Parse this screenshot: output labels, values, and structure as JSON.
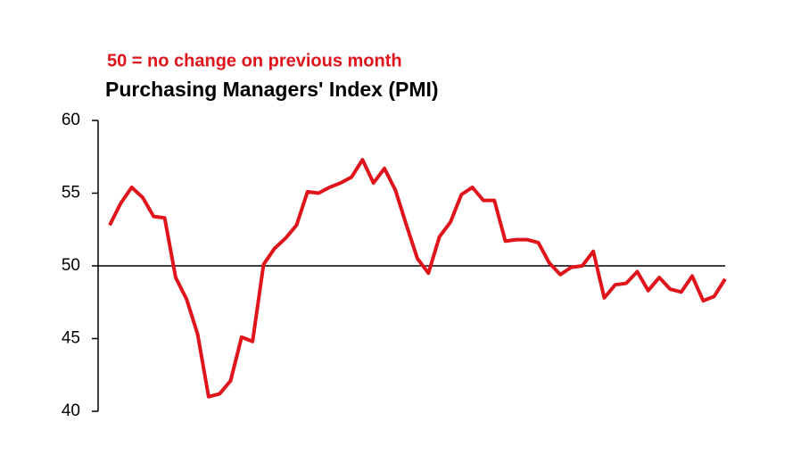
{
  "chart_data": {
    "type": "line",
    "annotation": "50 =  no change on previous month",
    "title": "Purchasing Managers' Index (PMI)",
    "series": [
      {
        "color": "#e0141b",
        "values": [
          52.8,
          54.3,
          55.4,
          54.7,
          53.4,
          53.3,
          49.2,
          47.7,
          45.3,
          41.0,
          41.2,
          42.1,
          45.1,
          44.8,
          50.1,
          51.2,
          51.9,
          52.8,
          55.1,
          55.0,
          55.4,
          55.7,
          56.1,
          57.3,
          55.7,
          56.7,
          55.2,
          52.8,
          50.5,
          49.5,
          52.0,
          53.0,
          54.9,
          55.4,
          54.5,
          54.5,
          51.7,
          51.8,
          51.8,
          51.6,
          50.2,
          49.4,
          49.9,
          50.0,
          51.0,
          47.8,
          48.7,
          48.8,
          49.6,
          48.3,
          49.2,
          48.4,
          48.2,
          49.3,
          47.6,
          47.9,
          49.1
        ]
      }
    ],
    "ylim": [
      40,
      60
    ],
    "yticks": [
      40,
      45,
      50,
      55,
      60
    ],
    "reference_line": 50
  }
}
